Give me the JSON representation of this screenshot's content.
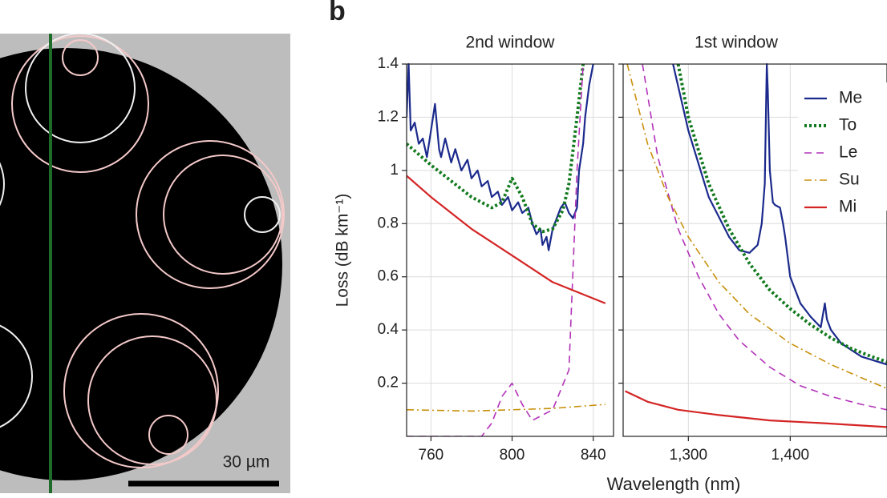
{
  "figure": {
    "panel_label": "b",
    "scale_bar_label": "30 µm",
    "xlabel": "Wavelength (nm)"
  },
  "chart_data": [
    {
      "type": "line",
      "title": "2nd window",
      "ylabel": "Loss (dB km⁻¹)",
      "xlim": [
        748,
        850
      ],
      "xticks": [
        760,
        800,
        840
      ],
      "ylim": [
        0,
        1.4
      ],
      "yticks": [
        0.2,
        0.4,
        0.6,
        0.8,
        1.0,
        1.2,
        1.4
      ],
      "ytick_labels": true,
      "grid": true,
      "series": [
        {
          "color": "#1b2a8c",
          "style": "solid",
          "x": [
            748,
            749,
            750,
            752,
            754,
            756,
            758,
            760,
            762,
            764,
            765,
            767,
            770,
            772,
            775,
            778,
            780,
            783,
            785,
            788,
            790,
            793,
            795,
            798,
            800,
            803,
            805,
            808,
            810,
            812,
            814,
            815,
            817,
            818,
            820,
            822,
            824,
            826,
            828,
            830,
            832,
            833,
            835,
            836,
            838,
            840
          ],
          "values": [
            1.2,
            1.4,
            1.15,
            1.18,
            1.1,
            1.12,
            1.05,
            1.15,
            1.25,
            1.08,
            1.05,
            1.12,
            1.03,
            1.08,
            1.0,
            1.04,
            0.97,
            1.0,
            0.94,
            0.96,
            0.9,
            0.92,
            0.87,
            0.9,
            0.85,
            0.88,
            0.84,
            0.86,
            0.8,
            0.76,
            0.78,
            0.72,
            0.75,
            0.7,
            0.78,
            0.82,
            0.86,
            0.88,
            0.84,
            0.82,
            0.86,
            1.0,
            1.1,
            1.2,
            1.32,
            1.4
          ]
        },
        {
          "color": "#127a1e",
          "style": "dotted",
          "x": [
            748,
            760,
            770,
            780,
            790,
            795,
            800,
            805,
            810,
            815,
            820,
            825,
            828,
            832,
            835
          ],
          "values": [
            1.1,
            1.02,
            0.96,
            0.9,
            0.86,
            0.88,
            0.97,
            0.9,
            0.8,
            0.77,
            0.78,
            0.85,
            0.95,
            1.2,
            1.4
          ]
        },
        {
          "color": "#b232b8",
          "style": "dashed",
          "x": [
            748,
            785,
            790,
            795,
            800,
            805,
            810,
            820,
            828,
            832,
            835
          ],
          "values": [
            0,
            0,
            0.05,
            0.15,
            0.2,
            0.12,
            0.06,
            0.1,
            0.25,
            1.0,
            1.4
          ]
        },
        {
          "color": "#c8900c",
          "style": "dashdot",
          "x": [
            748,
            780,
            800,
            820,
            846
          ],
          "values": [
            0.1,
            0.095,
            0.1,
            0.105,
            0.12
          ]
        },
        {
          "color": "#d42424",
          "style": "solid",
          "x": [
            748,
            760,
            780,
            800,
            820,
            846
          ],
          "values": [
            0.98,
            0.9,
            0.78,
            0.68,
            0.58,
            0.5
          ]
        }
      ]
    },
    {
      "type": "line",
      "title": "1st window",
      "xlim": [
        1236,
        1495
      ],
      "xticks": [
        {
          "value": 1300,
          "label": "1,300"
        },
        {
          "value": 1400,
          "label": "1,400"
        }
      ],
      "ylim": [
        0,
        1.4
      ],
      "yticks": [
        0.2,
        0.4,
        0.6,
        0.8,
        1.0,
        1.2,
        1.4
      ],
      "ytick_labels": false,
      "grid": true,
      "legend": "upper right",
      "series": [
        {
          "name": "Me",
          "color": "#1b2a8c",
          "style": "solid",
          "x": [
            1285,
            1300,
            1320,
            1340,
            1350,
            1360,
            1368,
            1372,
            1375,
            1377,
            1378,
            1380,
            1383,
            1385,
            1390,
            1393,
            1395,
            1400,
            1410,
            1420,
            1430,
            1434,
            1436,
            1440,
            1450,
            1470,
            1495
          ],
          "values": [
            1.4,
            1.15,
            0.9,
            0.75,
            0.7,
            0.69,
            0.72,
            0.8,
            0.95,
            1.4,
            1.3,
            1.0,
            0.88,
            0.87,
            0.86,
            0.8,
            0.75,
            0.6,
            0.5,
            0.45,
            0.41,
            0.5,
            0.44,
            0.4,
            0.35,
            0.3,
            0.27
          ]
        },
        {
          "name": "To",
          "color": "#127a1e",
          "style": "dotted",
          "x": [
            1290,
            1300,
            1320,
            1340,
            1360,
            1380,
            1400,
            1420,
            1440,
            1460,
            1480,
            1495
          ],
          "values": [
            1.4,
            1.2,
            0.95,
            0.78,
            0.65,
            0.55,
            0.48,
            0.42,
            0.37,
            0.33,
            0.3,
            0.28
          ]
        },
        {
          "name": "Le",
          "color": "#b232b8",
          "style": "dashed",
          "x": [
            1255,
            1270,
            1290,
            1310,
            1330,
            1350,
            1380,
            1410,
            1440,
            1470,
            1495
          ],
          "values": [
            1.4,
            1.05,
            0.78,
            0.6,
            0.46,
            0.36,
            0.26,
            0.19,
            0.15,
            0.12,
            0.1
          ]
        },
        {
          "name": "Su",
          "color": "#c8900c",
          "style": "dashdot",
          "x": [
            1240,
            1260,
            1280,
            1300,
            1330,
            1360,
            1400,
            1440,
            1470,
            1495
          ],
          "values": [
            1.4,
            1.1,
            0.9,
            0.75,
            0.58,
            0.46,
            0.35,
            0.27,
            0.22,
            0.18
          ]
        },
        {
          "name": "Mi",
          "color": "#d42424",
          "style": "solid",
          "x": [
            1238,
            1260,
            1290,
            1330,
            1380,
            1430,
            1495
          ],
          "values": [
            0.17,
            0.13,
            0.1,
            0.08,
            0.06,
            0.05,
            0.035
          ]
        }
      ]
    }
  ]
}
